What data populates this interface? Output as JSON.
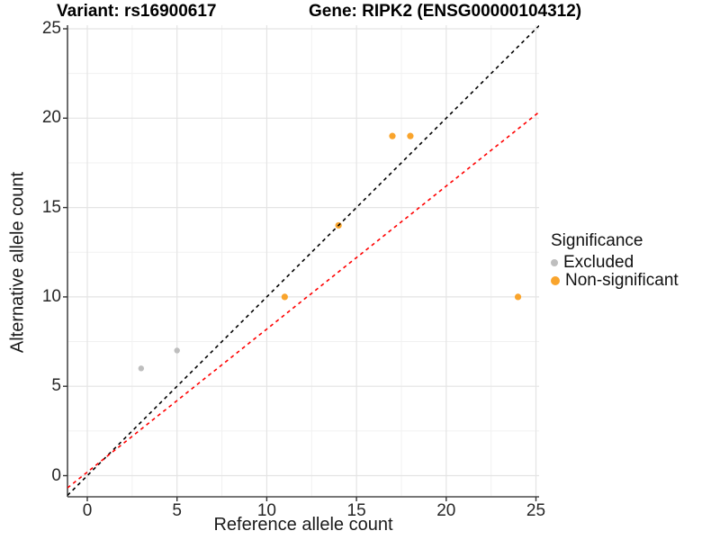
{
  "titles": {
    "left": "Variant: rs16900617",
    "right": "Gene: RIPK2 (ENSG00000104312)"
  },
  "legend": {
    "title": "Significance",
    "items": [
      {
        "label": "Excluded",
        "color": "#BEBEBE",
        "key_radius": 4
      },
      {
        "label": "Non-significant",
        "color": "#F9A42C",
        "key_radius": 5
      }
    ]
  },
  "chart_data": {
    "type": "scatter",
    "title_left": "Variant: rs16900617",
    "title_right": "Gene: RIPK2 (ENSG00000104312)",
    "xlabel": "Reference allele count",
    "ylabel": "Alternative allele count",
    "xlim": [
      -1.1,
      25.2
    ],
    "ylim": [
      -1.2,
      25.2
    ],
    "xticks": [
      0,
      5,
      10,
      15,
      20,
      25
    ],
    "yticks": [
      0,
      5,
      10,
      15,
      20,
      25
    ],
    "minor_ticks": [
      2.5,
      7.5,
      12.5,
      17.5,
      22.5
    ],
    "grid": "major-and-minor",
    "legend_title": "Significance",
    "legend_position": "right",
    "series": [
      {
        "name": "Excluded",
        "color": "#BEBEBE",
        "marker_radius": 3.2,
        "points": [
          [
            3,
            6
          ],
          [
            5,
            7
          ]
        ]
      },
      {
        "name": "Non-significant",
        "color": "#F9A42C",
        "marker_radius": 3.6,
        "points": [
          [
            11,
            10
          ],
          [
            14,
            14
          ],
          [
            17,
            19
          ],
          [
            18,
            19
          ],
          [
            24,
            10
          ]
        ]
      }
    ],
    "reference_lines": [
      {
        "name": "identity",
        "color": "#000000",
        "style": "dashed",
        "slope": 1,
        "intercept": 0
      },
      {
        "name": "expected",
        "color": "#FF0000",
        "style": "dashed",
        "slope": 0.8,
        "intercept": 0.2
      }
    ],
    "colors": {
      "major_grid": "#E4E4E4",
      "minor_grid": "#F1F1F1",
      "axis_line": "#4a4a4a",
      "tick_mark": "#333333"
    }
  }
}
